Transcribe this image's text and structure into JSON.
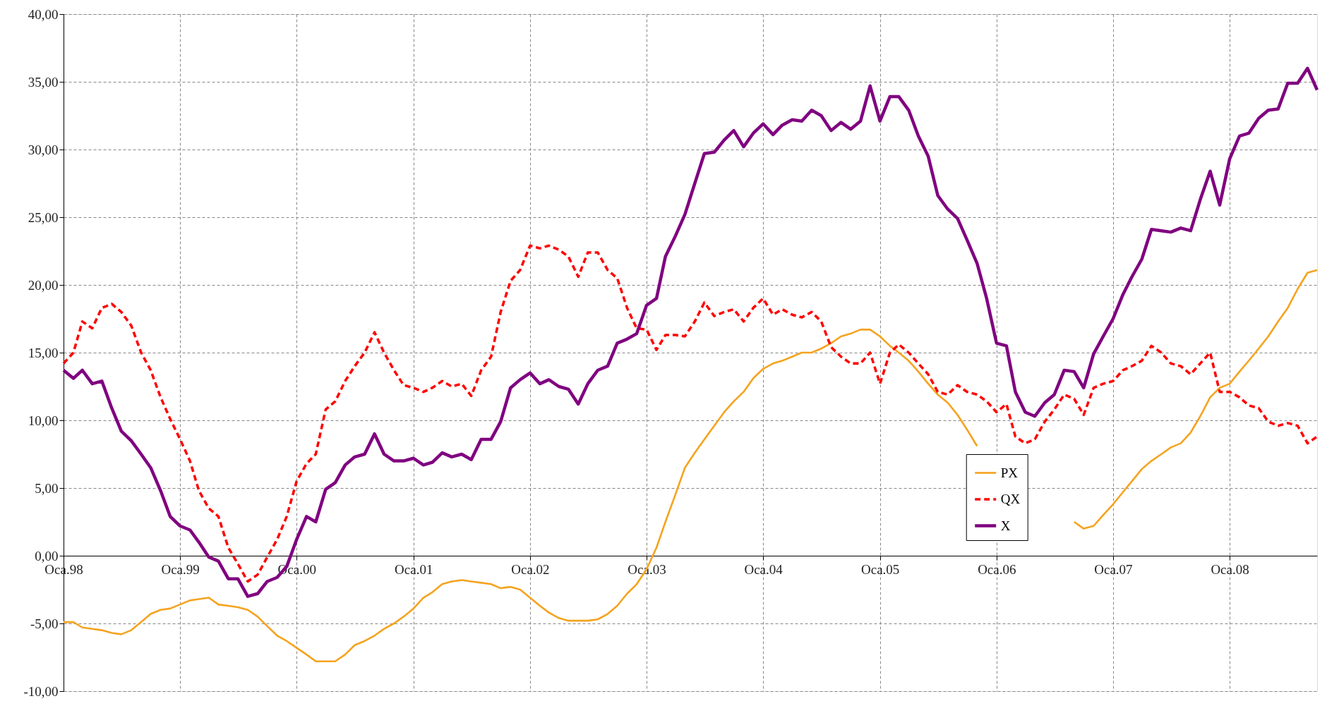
{
  "chart_data": {
    "type": "line",
    "xlim": [
      "1998-01",
      "2008-10"
    ],
    "xticks": [
      {
        "value": "1998-01",
        "label": "Oca.98"
      },
      {
        "value": "1999-01",
        "label": "Oca.99"
      },
      {
        "value": "2000-01",
        "label": "Oca.00"
      },
      {
        "value": "2001-01",
        "label": "Oca.01"
      },
      {
        "value": "2002-01",
        "label": "Oca.02"
      },
      {
        "value": "2003-01",
        "label": "Oca.03"
      },
      {
        "value": "2004-01",
        "label": "Oca.04"
      },
      {
        "value": "2005-01",
        "label": "Oca.05"
      },
      {
        "value": "2006-01",
        "label": "Oca.06"
      },
      {
        "value": "2007-01",
        "label": "Oca.07"
      },
      {
        "value": "2008-01",
        "label": "Oca.08"
      }
    ],
    "ylim": [
      -10,
      40
    ],
    "yticks": [
      {
        "value": -10,
        "label": "-10,00"
      },
      {
        "value": -5,
        "label": "-5,00"
      },
      {
        "value": 0,
        "label": "0,00"
      },
      {
        "value": 5,
        "label": "5,00"
      },
      {
        "value": 10,
        "label": "10,00"
      },
      {
        "value": 15,
        "label": "15,00"
      },
      {
        "value": 20,
        "label": "20,00"
      },
      {
        "value": 25,
        "label": "25,00"
      },
      {
        "value": 30,
        "label": "30,00"
      },
      {
        "value": 35,
        "label": "35,00"
      },
      {
        "value": 40,
        "label": "40,00"
      }
    ],
    "x": [
      "1998-01",
      "1998-02",
      "1998-03",
      "1998-04",
      "1998-05",
      "1998-06",
      "1998-07",
      "1998-08",
      "1998-09",
      "1998-10",
      "1998-11",
      "1998-12",
      "1999-01",
      "1999-02",
      "1999-03",
      "1999-04",
      "1999-05",
      "1999-06",
      "1999-07",
      "1999-08",
      "1999-09",
      "1999-10",
      "1999-11",
      "1999-12",
      "2000-01",
      "2000-02",
      "2000-03",
      "2000-04",
      "2000-05",
      "2000-06",
      "2000-07",
      "2000-08",
      "2000-09",
      "2000-10",
      "2000-11",
      "2000-12",
      "2001-01",
      "2001-02",
      "2001-03",
      "2001-04",
      "2001-05",
      "2001-06",
      "2001-07",
      "2001-08",
      "2001-09",
      "2001-10",
      "2001-11",
      "2001-12",
      "2002-01",
      "2002-02",
      "2002-03",
      "2002-04",
      "2002-05",
      "2002-06",
      "2002-07",
      "2002-08",
      "2002-09",
      "2002-10",
      "2002-11",
      "2002-12",
      "2003-01",
      "2003-02",
      "2003-03",
      "2003-04",
      "2003-05",
      "2003-06",
      "2003-07",
      "2003-08",
      "2003-09",
      "2003-10",
      "2003-11",
      "2003-12",
      "2004-01",
      "2004-02",
      "2004-03",
      "2004-04",
      "2004-05",
      "2004-06",
      "2004-07",
      "2004-08",
      "2004-09",
      "2004-10",
      "2004-11",
      "2004-12",
      "2005-01",
      "2005-02",
      "2005-03",
      "2005-04",
      "2005-05",
      "2005-06",
      "2005-07",
      "2005-08",
      "2005-09",
      "2005-10",
      "2005-11",
      "2005-12",
      "2006-01",
      "2006-02",
      "2006-03",
      "2006-04",
      "2006-05",
      "2006-06",
      "2006-07",
      "2006-08",
      "2006-09",
      "2006-10",
      "2006-11",
      "2006-12",
      "2007-01",
      "2007-02",
      "2007-03",
      "2007-04",
      "2007-05",
      "2007-06",
      "2007-07",
      "2007-08",
      "2007-09",
      "2007-10",
      "2007-11",
      "2007-12",
      "2008-01",
      "2008-02",
      "2008-03",
      "2008-04",
      "2008-05",
      "2008-06",
      "2008-07",
      "2008-08",
      "2008-09",
      "2008-10"
    ],
    "series": [
      {
        "name": "PX",
        "color": "#f5a31f",
        "line_style": "solid",
        "values": [
          -4.9,
          -4.9,
          -5.3,
          -5.4,
          -5.5,
          -5.7,
          -5.8,
          -5.5,
          -4.9,
          -4.3,
          -4.0,
          -3.9,
          -3.6,
          -3.3,
          -3.2,
          -3.1,
          -3.6,
          -3.7,
          -3.8,
          -4.0,
          -4.5,
          -5.2,
          -5.9,
          -6.3,
          -6.8,
          -7.3,
          -7.8,
          -7.8,
          -7.8,
          -7.3,
          -6.6,
          -6.3,
          -5.9,
          -5.4,
          -5.0,
          -4.5,
          -3.9,
          -3.1,
          -2.7,
          -2.1,
          -1.9,
          -1.8,
          -1.9,
          -2.0,
          -2.1,
          -2.4,
          -2.3,
          -2.5,
          -3.1,
          -3.7,
          -4.2,
          -4.6,
          -4.8,
          -4.8,
          -4.8,
          -4.7,
          -4.3,
          -3.7,
          -2.8,
          -2.1,
          -1.0,
          0.6,
          2.5,
          4.5,
          6.5,
          7.6,
          8.6,
          9.6,
          10.6,
          11.4,
          12.1,
          13.1,
          13.8,
          14.2,
          14.4,
          14.7,
          15.0,
          15.0,
          15.3,
          15.7,
          16.2,
          16.4,
          16.7,
          16.7,
          16.2,
          15.5,
          15.0,
          14.4,
          13.6,
          12.7,
          11.9,
          11.3,
          10.4,
          9.3,
          8.1,
          null,
          null,
          null,
          null,
          null,
          null,
          null,
          null,
          null,
          2.5,
          2.0,
          2.2,
          3.0,
          3.8,
          4.7,
          5.5,
          6.4,
          7.0,
          7.5,
          8.0,
          8.3,
          9.1,
          10.3,
          11.7,
          12.4,
          12.7,
          13.6,
          14.4,
          15.3,
          16.2,
          17.3,
          18.3,
          19.7,
          20.9,
          21.1
        ]
      },
      {
        "name": "QX",
        "color": "#ff0000",
        "line_style": "dashed",
        "values": [
          14.2,
          15.0,
          17.3,
          16.8,
          18.3,
          18.6,
          18.0,
          17.0,
          15.0,
          13.7,
          11.7,
          10.1,
          8.6,
          7.0,
          4.8,
          3.5,
          2.9,
          0.6,
          -0.6,
          -1.9,
          -1.4,
          -0.1,
          1.2,
          2.9,
          5.5,
          6.8,
          7.5,
          10.8,
          11.4,
          12.9,
          14.0,
          15.0,
          16.5,
          15.0,
          13.7,
          12.6,
          12.4,
          12.1,
          12.4,
          12.9,
          12.5,
          12.7,
          11.8,
          13.7,
          14.7,
          18.0,
          20.3,
          21.1,
          22.9,
          22.7,
          22.9,
          22.6,
          22.1,
          20.6,
          22.4,
          22.4,
          21.1,
          20.5,
          18.3,
          16.8,
          16.7,
          15.2,
          16.3,
          16.3,
          16.2,
          17.3,
          18.7,
          17.7,
          18.0,
          18.2,
          17.3,
          18.3,
          19.0,
          17.8,
          18.2,
          17.8,
          17.6,
          18.0,
          17.3,
          15.4,
          14.7,
          14.2,
          14.2,
          15.0,
          12.7,
          15.0,
          15.6,
          15.0,
          14.2,
          13.4,
          12.1,
          11.9,
          12.6,
          12.1,
          11.9,
          11.4,
          10.6,
          11.2,
          8.8,
          8.3,
          8.6,
          9.9,
          10.8,
          11.9,
          11.6,
          10.4,
          12.4,
          12.7,
          12.9,
          13.7,
          14.0,
          14.4,
          15.5,
          15.0,
          14.2,
          14.0,
          13.4,
          14.2,
          15.0,
          12.1,
          12.1,
          11.7,
          11.1,
          10.9,
          9.9,
          9.6,
          9.8,
          9.6,
          8.3,
          8.8
        ]
      },
      {
        "name": "X",
        "color": "#800080",
        "line_style": "solid",
        "values": [
          13.7,
          13.1,
          13.7,
          12.7,
          12.9,
          10.9,
          9.2,
          8.5,
          7.5,
          6.5,
          4.8,
          2.9,
          2.2,
          1.9,
          1.0,
          -0.1,
          -0.4,
          -1.7,
          -1.7,
          -3.0,
          -2.8,
          -1.9,
          -1.6,
          -0.8,
          1.2,
          2.9,
          2.5,
          4.9,
          5.4,
          6.7,
          7.3,
          7.5,
          9.0,
          7.5,
          7.0,
          7.0,
          7.2,
          6.7,
          6.9,
          7.6,
          7.3,
          7.5,
          7.1,
          8.6,
          8.6,
          9.9,
          12.4,
          13.0,
          13.5,
          12.7,
          13.0,
          12.5,
          12.3,
          11.2,
          12.7,
          13.7,
          14.0,
          15.7,
          16.0,
          16.4,
          18.5,
          19.0,
          22.1,
          23.6,
          25.2,
          27.5,
          29.7,
          29.8,
          30.7,
          31.4,
          30.2,
          31.2,
          31.9,
          31.1,
          31.8,
          32.2,
          32.1,
          32.9,
          32.5,
          31.4,
          32.0,
          31.5,
          32.1,
          34.7,
          32.1,
          33.9,
          33.9,
          32.9,
          31.0,
          29.5,
          26.6,
          25.6,
          24.9,
          23.3,
          21.6,
          19.0,
          15.7,
          15.5,
          12.1,
          10.6,
          10.3,
          11.3,
          11.9,
          13.7,
          13.6,
          12.4,
          14.9,
          16.2,
          17.5,
          19.3,
          20.6,
          21.9,
          24.1,
          24.0,
          23.9,
          24.2,
          24.0,
          26.3,
          28.4,
          25.9,
          29.3,
          31.0,
          31.2,
          32.3,
          32.9,
          33.0,
          34.9,
          34.9,
          36.0,
          34.4
        ]
      }
    ],
    "grid": true,
    "legend": "right"
  }
}
